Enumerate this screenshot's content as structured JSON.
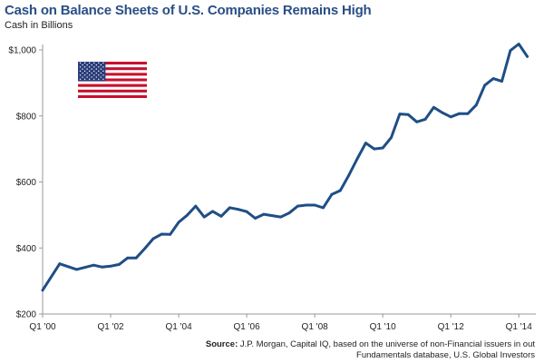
{
  "header": {
    "title": "Cash on Balance Sheets of U.S. Companies Remains High",
    "subtitle": "Cash in Billions"
  },
  "source": {
    "label": "Source:",
    "text": "J.P. Morgan, Capital IQ, based on the universe of non-Financial issuers in out Fundamentals database, U.S. Global Investors"
  },
  "flag": {
    "icon": "us-flag-icon"
  },
  "colors": {
    "line": "#1f4e86",
    "title": "#2a4f86",
    "axis": "#999999"
  },
  "chart_data": {
    "type": "line",
    "title": "Cash on Balance Sheets of U.S. Companies Remains High",
    "ylabel": "Cash in Billions",
    "xlabel": "",
    "ylim": [
      200,
      1000
    ],
    "xlim": [
      2000.0,
      2014.5
    ],
    "yticks": [
      {
        "value": 200,
        "label": "$200"
      },
      {
        "value": 400,
        "label": "$400"
      },
      {
        "value": 600,
        "label": "$600"
      },
      {
        "value": 800,
        "label": "$800"
      },
      {
        "value": 1000,
        "label": "$1,000"
      }
    ],
    "xticks": [
      {
        "value": 2000,
        "label": "Q1 '00"
      },
      {
        "value": 2002,
        "label": "Q1 '02"
      },
      {
        "value": 2004,
        "label": "Q1 '04"
      },
      {
        "value": 2006,
        "label": "Q1 '06"
      },
      {
        "value": 2008,
        "label": "Q1 '08"
      },
      {
        "value": 2010,
        "label": "Q1 '10"
      },
      {
        "value": 2012,
        "label": "Q1 '12"
      },
      {
        "value": 2014,
        "label": "Q1 '14"
      }
    ],
    "grid": false,
    "series": [
      {
        "name": "",
        "x": [
          2000.0,
          2000.5,
          2001.0,
          2001.5,
          2001.75,
          2002.0,
          2002.25,
          2002.5,
          2002.75,
          2003.0,
          2003.25,
          2003.5,
          2003.75,
          2004.0,
          2004.25,
          2004.5,
          2004.75,
          2005.0,
          2005.25,
          2005.5,
          2005.75,
          2006.0,
          2006.25,
          2006.5,
          2006.75,
          2007.0,
          2007.25,
          2007.5,
          2007.75,
          2008.0,
          2008.25,
          2008.5,
          2008.75,
          2009.0,
          2009.25,
          2009.5,
          2009.75,
          2010.0,
          2010.25,
          2010.5,
          2010.75,
          2011.0,
          2011.25,
          2011.5,
          2011.75,
          2012.0,
          2012.25,
          2012.5,
          2012.75,
          2013.0,
          2013.25,
          2013.5,
          2013.75,
          2014.0,
          2014.25
        ],
        "values": [
          272,
          352,
          335,
          348,
          342,
          345,
          350,
          370,
          370,
          398,
          428,
          442,
          441,
          478,
          499,
          527,
          494,
          511,
          496,
          522,
          517,
          510,
          490,
          502,
          498,
          494,
          506,
          527,
          530,
          530,
          522,
          562,
          574,
          620,
          670,
          718,
          700,
          703,
          735,
          806,
          804,
          782,
          790,
          826,
          810,
          797,
          807,
          807,
          833,
          893,
          913,
          905,
          998,
          1018,
          980
        ]
      }
    ]
  }
}
